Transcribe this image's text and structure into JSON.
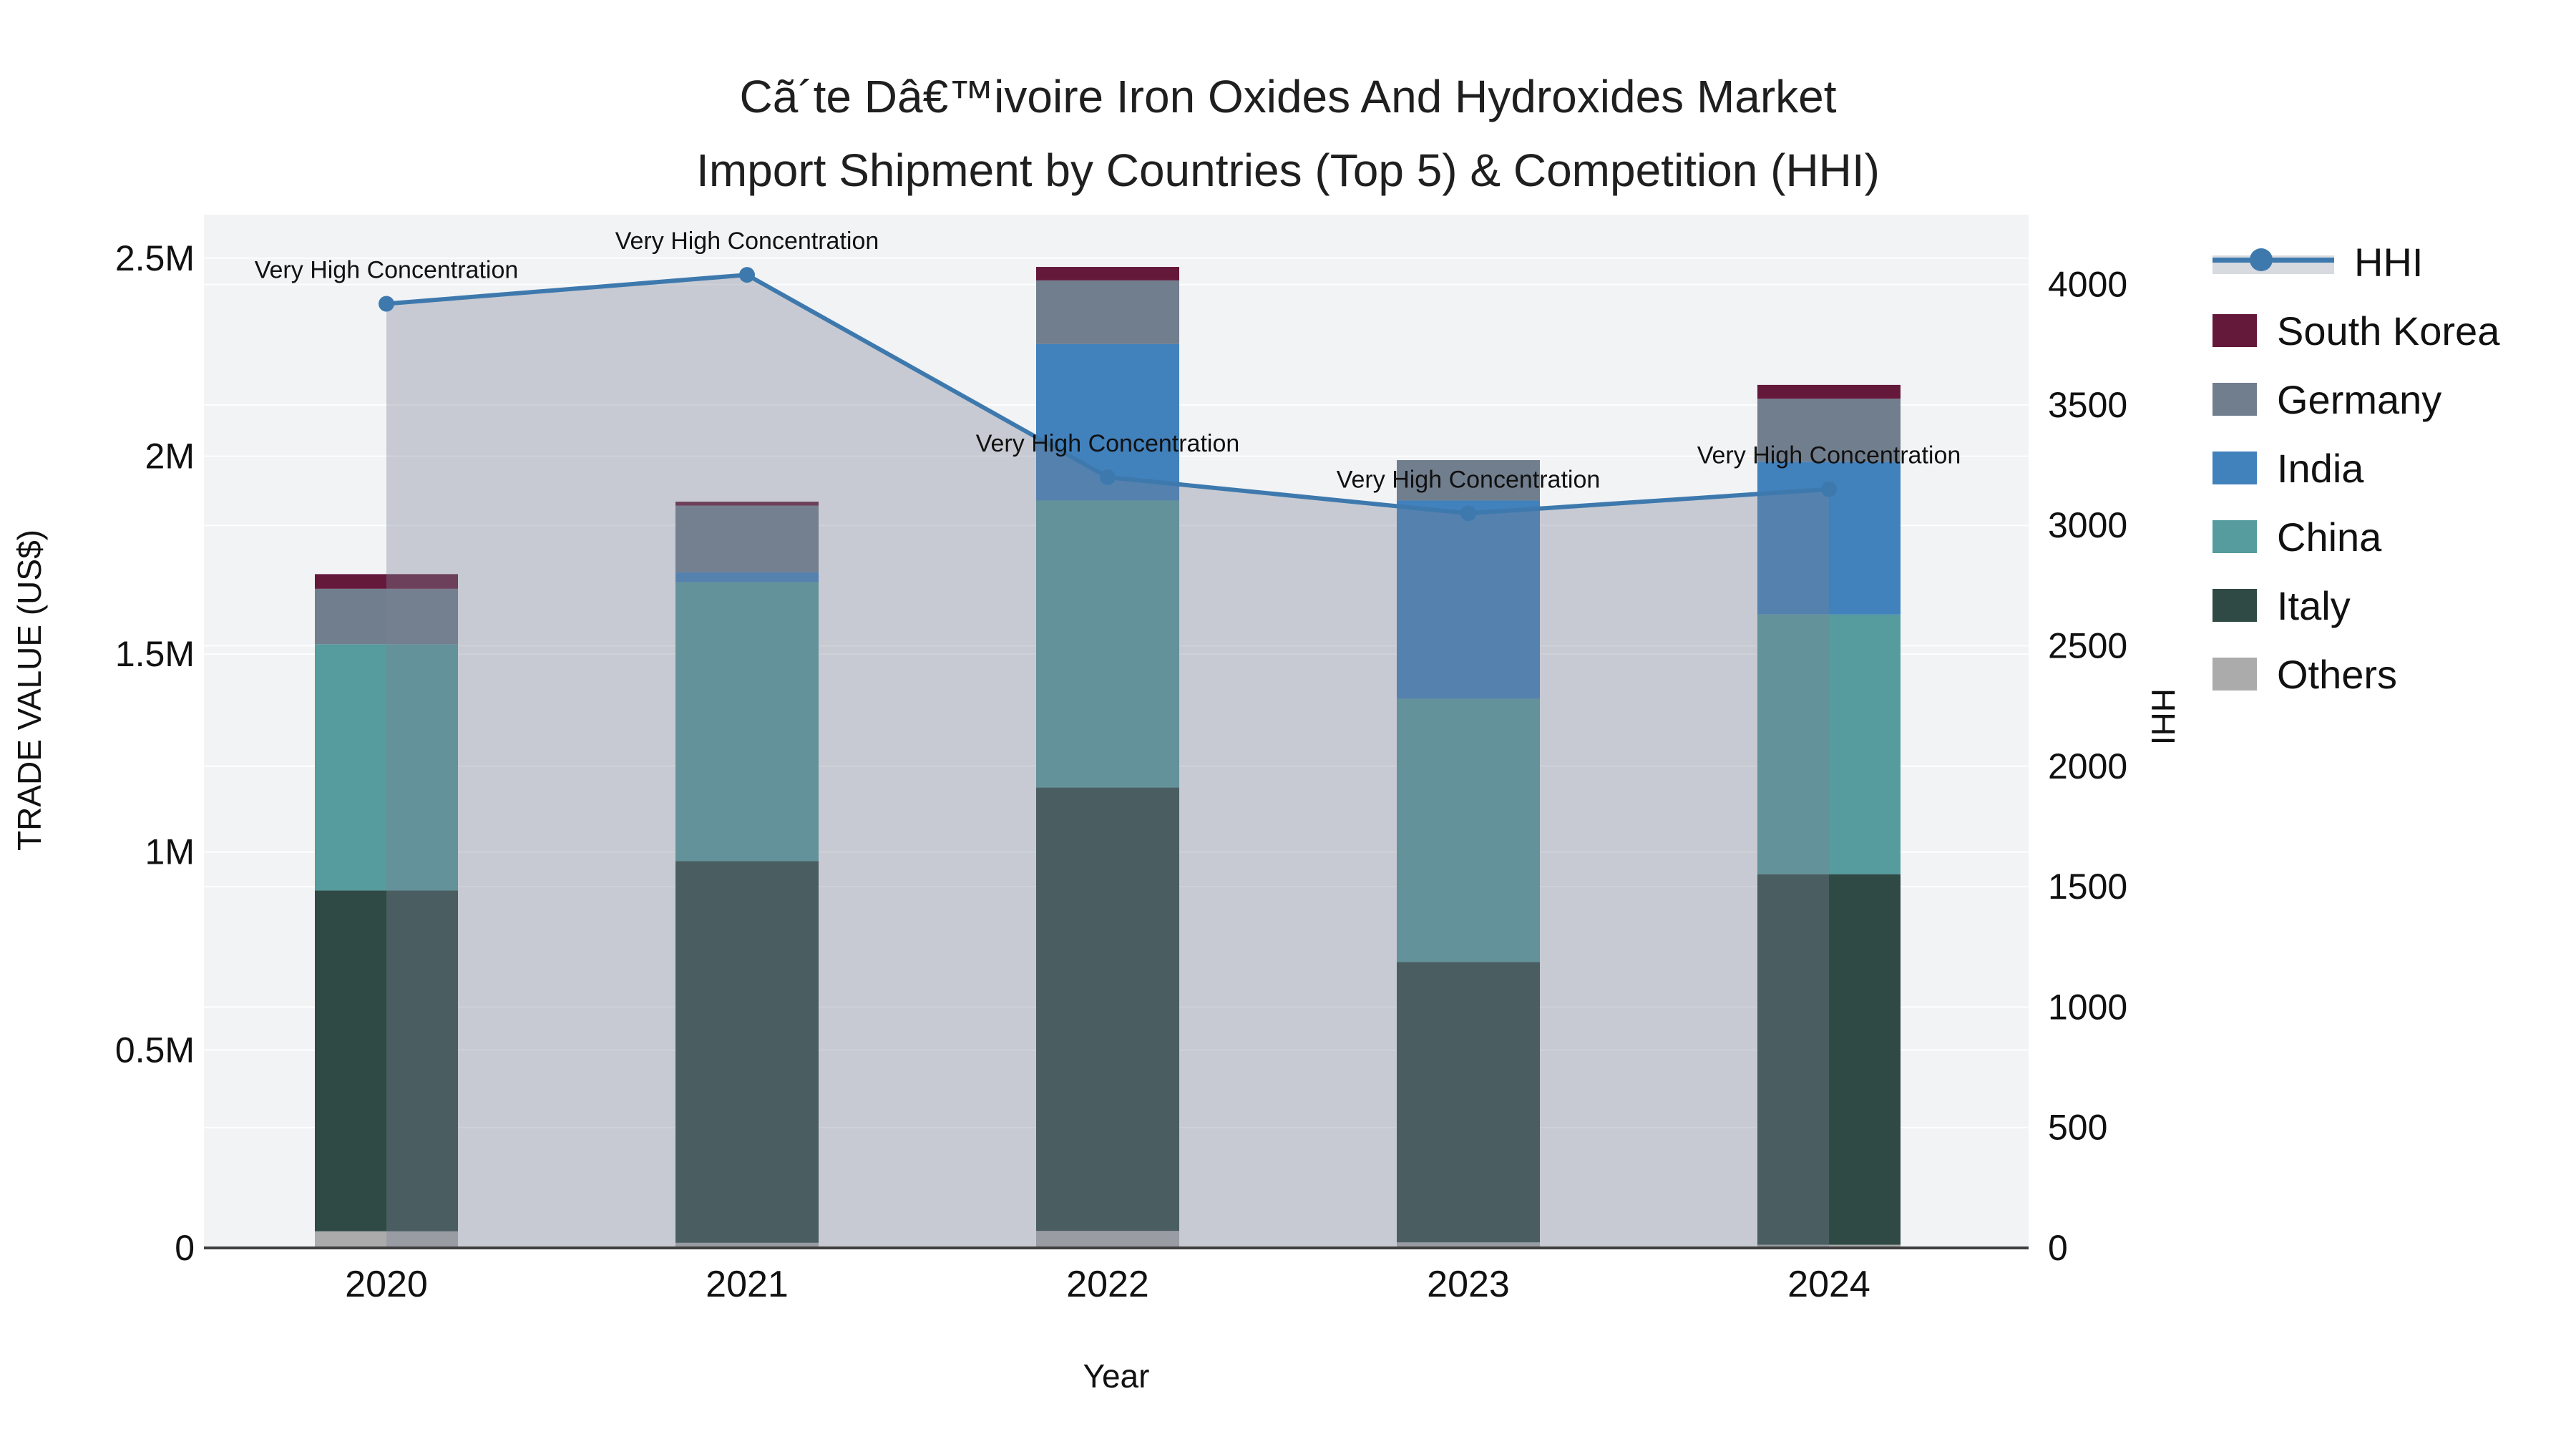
{
  "title_line1": "Cã´te Dâ€™ivoire Iron Oxides And Hydroxides Market",
  "title_line2": "Import Shipment by Countries (Top 5) & Competition (HHI)",
  "legend": {
    "items": [
      {
        "label": "HHI",
        "color": "#3E79AE",
        "type": "line"
      },
      {
        "label": "South Korea",
        "color": "#64193B",
        "type": "swatch"
      },
      {
        "label": "Germany",
        "color": "#717E8E",
        "type": "swatch"
      },
      {
        "label": "India",
        "color": "#4181BC",
        "type": "swatch"
      },
      {
        "label": "China",
        "color": "#569B9D",
        "type": "swatch"
      },
      {
        "label": "Italy",
        "color": "#2F4A45",
        "type": "swatch"
      },
      {
        "label": "Others",
        "color": "#ABABAB",
        "type": "swatch"
      }
    ]
  },
  "chart_data": {
    "type": "bar",
    "subtype": "stacked-bars-with-line",
    "categories": [
      "2020",
      "2021",
      "2022",
      "2023",
      "2024"
    ],
    "series": [
      {
        "name": "Others",
        "color": "#ABABAB",
        "values": [
          42000,
          13000,
          43000,
          14000,
          8000
        ]
      },
      {
        "name": "Italy",
        "color": "#2F4A45",
        "values": [
          861000,
          964000,
          1120000,
          708000,
          936000
        ]
      },
      {
        "name": "China",
        "color": "#569B9D",
        "values": [
          622000,
          705000,
          725000,
          665000,
          656000
        ]
      },
      {
        "name": "India",
        "color": "#4181BC",
        "values": [
          0,
          25000,
          395000,
          501000,
          386000
        ]
      },
      {
        "name": "Germany",
        "color": "#717E8E",
        "values": [
          140000,
          168000,
          161000,
          102000,
          159000
        ]
      },
      {
        "name": "South Korea",
        "color": "#64193B",
        "values": [
          37000,
          10000,
          34000,
          0,
          35000
        ]
      }
    ],
    "line_series": {
      "name": "HHI",
      "color": "#3E79AE",
      "values": [
        3920,
        4040,
        3200,
        3050,
        3150
      ],
      "annotation_label": "Very High Concentration",
      "area_fill": "rgba(122,131,150,0.36)"
    },
    "xlabel": "Year",
    "ylabel_left": "TRADE VALUE (US$)",
    "ylabel_right": "HHI",
    "y_left_ticks": {
      "values": [
        0,
        500000,
        1000000,
        1500000,
        2000000,
        2500000
      ],
      "labels": [
        "0",
        "0.5M",
        "1M",
        "1.5M",
        "2M",
        "2.5M"
      ]
    },
    "y_right_ticks": {
      "values": [
        0,
        500,
        1000,
        1500,
        2000,
        2500,
        3000,
        3500,
        4000
      ],
      "labels": [
        "0",
        "500",
        "1000",
        "1500",
        "2000",
        "2500",
        "3000",
        "3500",
        "4000"
      ]
    },
    "ylim_left": [
      0,
      2610000
    ],
    "ylim_right": [
      0,
      4290
    ],
    "grid": true,
    "plot_bg": "#F2F3F5",
    "grid_color": "rgba(255,255,255,0.85)",
    "axis_line_color": "#3F3F3F",
    "legend_position": "right"
  }
}
